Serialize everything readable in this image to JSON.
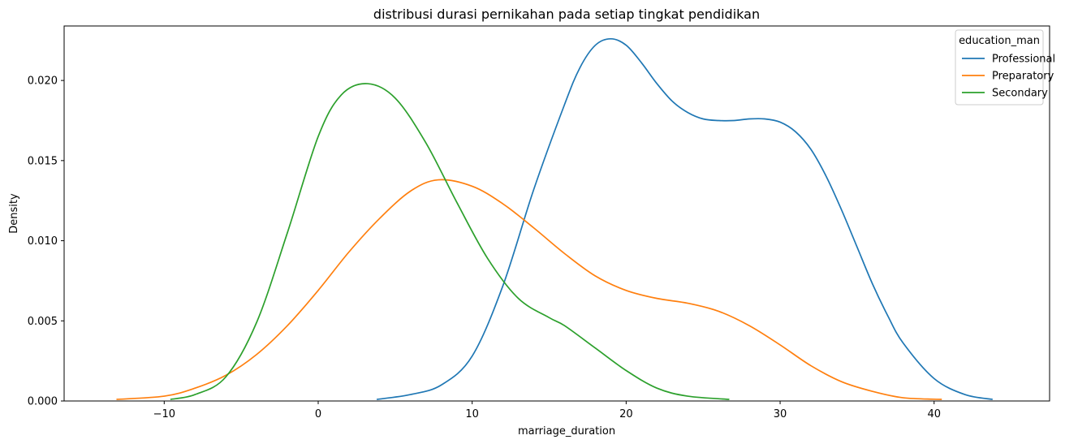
{
  "chart_data": {
    "type": "line",
    "title": "distribusi durasi pernikahan pada setiap tingkat pendidikan",
    "xlabel": "marriage_duration",
    "ylabel": "Density",
    "xlim": [
      -16.5,
      47.5
    ],
    "ylim": [
      0,
      0.0234
    ],
    "x_ticks": [
      -10,
      0,
      10,
      20,
      30,
      40
    ],
    "x_tick_labels": [
      "−10",
      "0",
      "10",
      "20",
      "30",
      "40"
    ],
    "y_ticks": [
      0.0,
      0.005,
      0.01,
      0.015,
      0.02
    ],
    "y_tick_labels": [
      "0.000",
      "0.005",
      "0.010",
      "0.015",
      "0.020"
    ],
    "grid": false,
    "legend": {
      "title": "education_man",
      "placement": "top-right"
    },
    "series": [
      {
        "name": "Professional",
        "color": "#1f77b4",
        "x": [
          3.8,
          6,
          8,
          10,
          12,
          14,
          16,
          17,
          18,
          19,
          20,
          21,
          22,
          23,
          24,
          25,
          26,
          27,
          28,
          29,
          30,
          31,
          32,
          33,
          34,
          35,
          36,
          37,
          38,
          40,
          42,
          43.8
        ],
        "y": [
          0.0001,
          0.0004,
          0.001,
          0.0028,
          0.0072,
          0.0132,
          0.0185,
          0.0208,
          0.0222,
          0.0226,
          0.0222,
          0.0211,
          0.0198,
          0.0187,
          0.018,
          0.0176,
          0.0175,
          0.0175,
          0.0176,
          0.0176,
          0.0174,
          0.0168,
          0.0157,
          0.014,
          0.0119,
          0.0096,
          0.0073,
          0.0053,
          0.0036,
          0.0014,
          0.0004,
          0.0001
        ]
      },
      {
        "name": "Preparatory",
        "color": "#ff7f0e",
        "x": [
          -13.1,
          -10,
          -8,
          -6,
          -4,
          -2,
          0,
          2,
          4,
          6,
          7.8,
          10,
          12,
          14,
          16,
          18,
          20,
          22,
          24,
          26,
          28,
          30,
          32,
          34,
          36,
          38,
          40.5
        ],
        "y": [
          0.0001,
          0.0003,
          0.0008,
          0.0016,
          0.0029,
          0.0047,
          0.0069,
          0.0093,
          0.0114,
          0.0131,
          0.0138,
          0.0134,
          0.0123,
          0.0108,
          0.0092,
          0.0078,
          0.0069,
          0.0064,
          0.0061,
          0.0056,
          0.0047,
          0.0035,
          0.0022,
          0.0012,
          0.0006,
          0.0002,
          0.0001
        ]
      },
      {
        "name": "Secondary",
        "color": "#2ca02c",
        "x": [
          -9.6,
          -8,
          -6,
          -4,
          -2,
          0,
          1.5,
          3.2,
          5,
          7,
          9,
          11,
          13,
          15,
          16,
          18,
          20,
          22,
          24,
          26.7
        ],
        "y": [
          0.0001,
          0.0004,
          0.0015,
          0.0049,
          0.0105,
          0.0165,
          0.0191,
          0.0198,
          0.0189,
          0.0161,
          0.0124,
          0.0089,
          0.0064,
          0.0052,
          0.0047,
          0.0033,
          0.0019,
          0.0008,
          0.0003,
          0.0001
        ]
      }
    ]
  }
}
